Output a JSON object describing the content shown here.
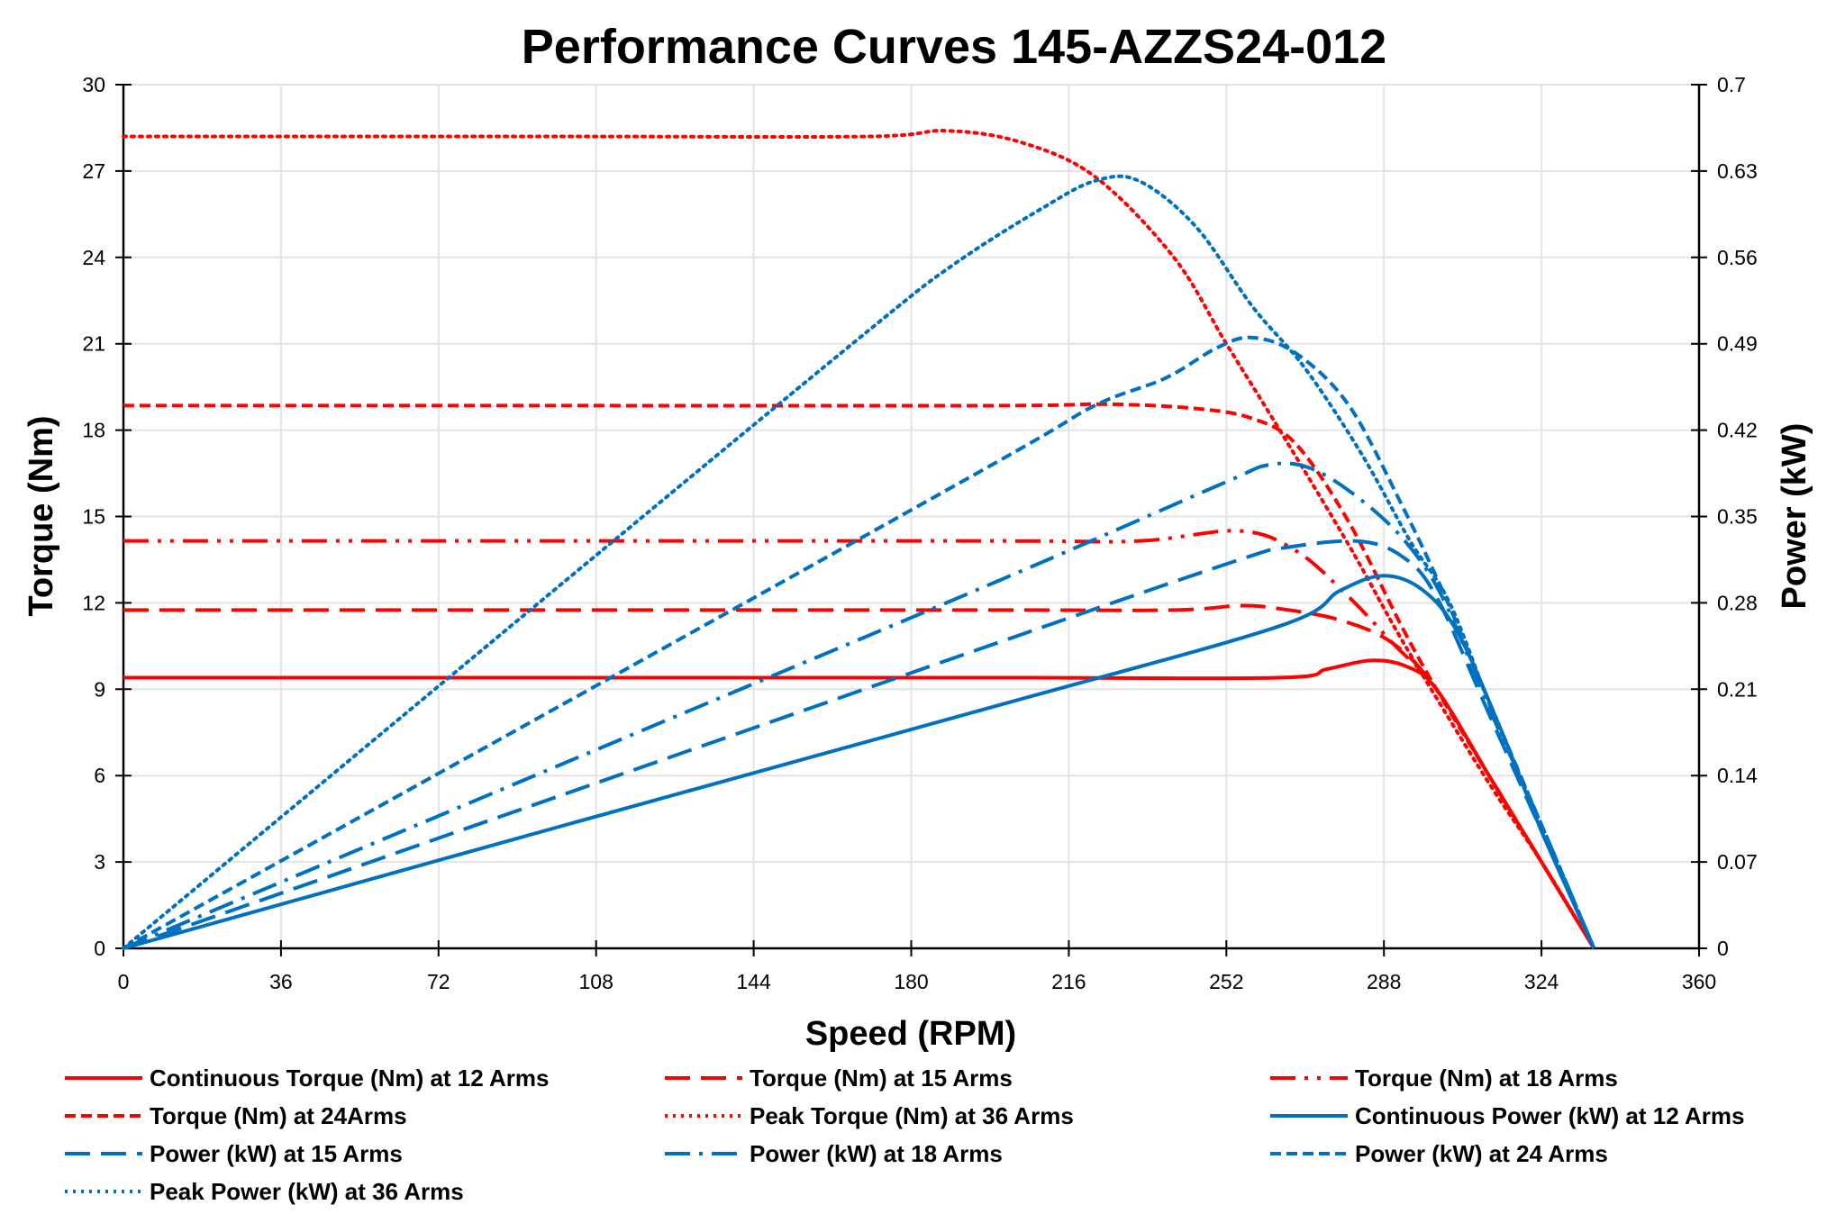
{
  "chart_data": {
    "type": "line",
    "title": "Performance Curves 145-AZZS24-012",
    "xlabel": "Speed (RPM)",
    "ylabel": "Torque (Nm)",
    "y2label": "Power (kW)",
    "xlim": [
      0,
      360
    ],
    "ylim": [
      0,
      30
    ],
    "y2lim": [
      0,
      0.7
    ],
    "xticks": [
      "0",
      "36",
      "72",
      "108",
      "144",
      "180",
      "216",
      "252",
      "288",
      "324",
      "360"
    ],
    "yticks": [
      "0",
      "3",
      "6",
      "9",
      "12",
      "15",
      "18",
      "21",
      "24",
      "27",
      "30"
    ],
    "y2ticks": [
      "0",
      "0.07",
      "0.14",
      "0.21",
      "0.28",
      "0.35",
      "0.42",
      "0.49",
      "0.56",
      "0.63",
      "0.7"
    ],
    "grid": true,
    "legend_position": "bottom",
    "colors": {
      "torque": "#ff0000",
      "power": "#0070c0"
    },
    "series": [
      {
        "name": "Continuous Torque (Nm) at 12 Arms",
        "axis": "left",
        "color": "#ff0000",
        "dash": "solid",
        "x": [
          0,
          100,
          200,
          264,
          275,
          285,
          293,
          300,
          312,
          324,
          336
        ],
        "y": [
          9.4,
          9.4,
          9.4,
          9.4,
          9.7,
          10.0,
          9.8,
          9.0,
          6.0,
          3.0,
          0
        ]
      },
      {
        "name": "Torque (Nm) at 15 Arms",
        "axis": "left",
        "color": "#ff0000",
        "dash": "long-dash",
        "x": [
          0,
          100,
          200,
          240,
          255,
          264,
          278,
          290,
          300,
          312,
          324,
          336
        ],
        "y": [
          11.75,
          11.75,
          11.75,
          11.75,
          11.9,
          11.8,
          11.4,
          10.6,
          9.0,
          6.0,
          3.0,
          0
        ]
      },
      {
        "name": "Torque (Nm) at 18 Arms",
        "axis": "left",
        "color": "#ff0000",
        "dash": "dash-dot-dot",
        "x": [
          0,
          100,
          200,
          232,
          255,
          268,
          280,
          290,
          300,
          312,
          324,
          336
        ],
        "y": [
          14.15,
          14.15,
          14.15,
          14.15,
          14.5,
          13.8,
          12.2,
          10.6,
          9.0,
          6.0,
          3.0,
          0
        ]
      },
      {
        "name": "Torque (Nm) at 24Arms",
        "axis": "left",
        "color": "#ff0000",
        "dash": "short-dash",
        "x": [
          0,
          100,
          200,
          225,
          245,
          258,
          268,
          280,
          292,
          300,
          312,
          324,
          336
        ],
        "y": [
          18.85,
          18.85,
          18.85,
          18.9,
          18.75,
          18.4,
          17.5,
          14.8,
          11.2,
          9.0,
          6.0,
          3.0,
          0
        ]
      },
      {
        "name": "Peak Torque (Nm) at 36 Arms",
        "axis": "left",
        "color": "#ff0000",
        "dash": "dotted",
        "x": [
          0,
          100,
          170,
          188,
          205,
          222,
          240,
          252,
          265,
          280,
          291,
          302,
          313,
          324,
          336
        ],
        "y": [
          28.2,
          28.2,
          28.2,
          28.4,
          28.0,
          26.8,
          24.0,
          21.0,
          17.8,
          14.0,
          11.0,
          8.2,
          5.5,
          3.0,
          0
        ]
      },
      {
        "name": "Continuous Power (kW) at 12 Arms",
        "axis": "right",
        "color": "#0070c0",
        "dash": "solid",
        "x": [
          0,
          100,
          200,
          264,
          278,
          288,
          297,
          305,
          315,
          324,
          336
        ],
        "y": [
          0,
          0.099,
          0.197,
          0.261,
          0.29,
          0.302,
          0.29,
          0.255,
          0.175,
          0.095,
          0
        ]
      },
      {
        "name": "Power (kW) at 15 Arms",
        "axis": "right",
        "color": "#0070c0",
        "dash": "long-dash",
        "x": [
          0,
          100,
          200,
          255,
          266,
          282,
          292,
          300,
          312,
          324,
          336
        ],
        "y": [
          0,
          0.124,
          0.248,
          0.315,
          0.325,
          0.33,
          0.318,
          0.285,
          0.19,
          0.095,
          0
        ]
      },
      {
        "name": "Power (kW) at 18 Arms",
        "axis": "right",
        "color": "#0070c0",
        "dash": "long-dash-dot",
        "x": [
          0,
          100,
          200,
          250,
          262,
          272,
          284,
          294,
          302,
          312,
          324,
          336
        ],
        "y": [
          0,
          0.149,
          0.298,
          0.375,
          0.392,
          0.388,
          0.36,
          0.325,
          0.28,
          0.195,
          0.1,
          0
        ]
      },
      {
        "name": "Power (kW) at 24 Arms",
        "axis": "right",
        "color": "#0070c0",
        "dash": "short-dash",
        "x": [
          0,
          100,
          200,
          222,
          238,
          250,
          258,
          268,
          280,
          292,
          302,
          312,
          324,
          336
        ],
        "y": [
          0,
          0.197,
          0.395,
          0.44,
          0.462,
          0.487,
          0.495,
          0.482,
          0.44,
          0.36,
          0.285,
          0.2,
          0.1,
          0
        ]
      },
      {
        "name": "Peak Power (kW) at 36 Arms",
        "axis": "right",
        "color": "#0070c0",
        "dash": "dotted",
        "x": [
          0,
          100,
          170,
          190,
          210,
          222,
          232,
          245,
          258,
          270,
          283,
          294,
          303,
          313,
          324,
          336
        ],
        "y": [
          0,
          0.295,
          0.5,
          0.555,
          0.6,
          0.622,
          0.622,
          0.585,
          0.52,
          0.47,
          0.4,
          0.33,
          0.28,
          0.19,
          0.1,
          0
        ]
      }
    ]
  }
}
